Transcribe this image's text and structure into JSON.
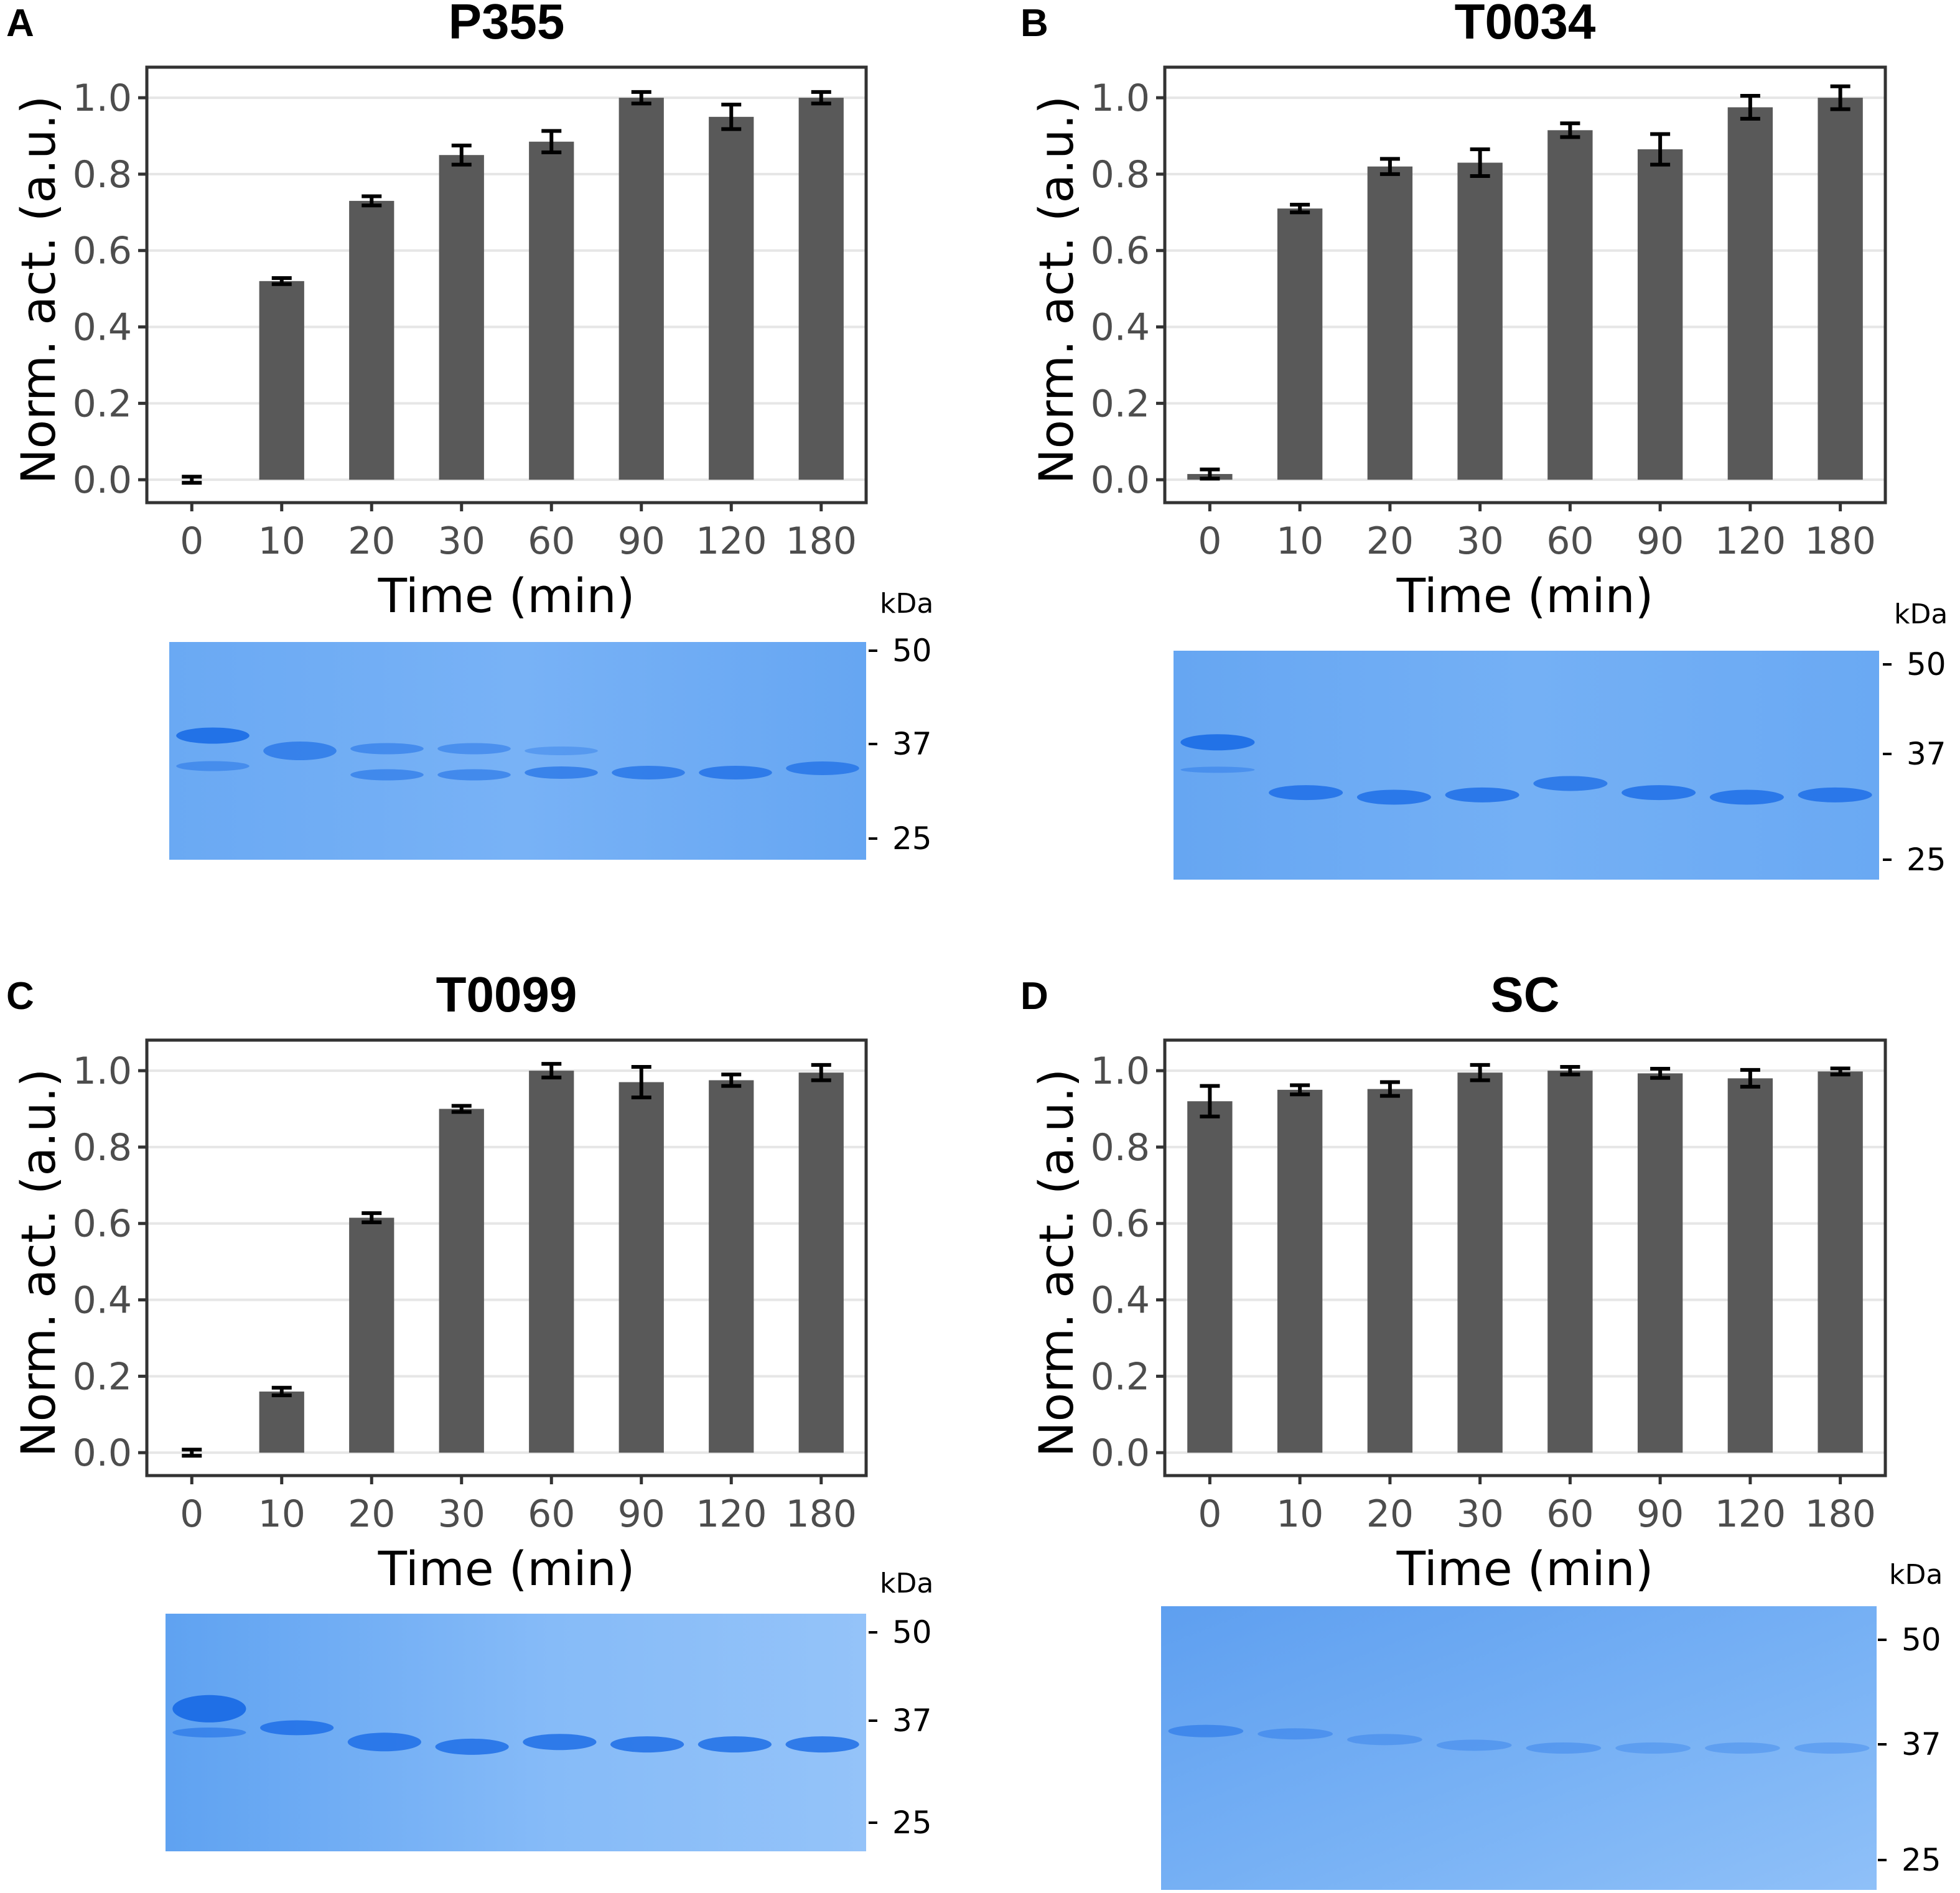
{
  "chart_data": [
    {
      "panel": "A",
      "title": "P355",
      "type": "bar",
      "categories": [
        "0",
        "10",
        "20",
        "30",
        "60",
        "90",
        "120",
        "180"
      ],
      "values": [
        0.0,
        0.52,
        0.73,
        0.85,
        0.885,
        1.0,
        0.95,
        1.0
      ],
      "errors": [
        0.008,
        0.008,
        0.012,
        0.025,
        0.028,
        0.015,
        0.032,
        0.015
      ],
      "xlabel": "Time (min)",
      "ylabel": "Norm. act. (a.u.)",
      "ylim": [
        -0.06,
        1.08
      ],
      "yticks": [
        "0.0",
        "0.2",
        "0.4",
        "0.6",
        "0.8",
        "1.0"
      ],
      "gel": {
        "unit": "kDa",
        "markers": [
          "50",
          "37",
          "25"
        ]
      }
    },
    {
      "panel": "B",
      "title": "T0034",
      "type": "bar",
      "categories": [
        "0",
        "10",
        "20",
        "30",
        "60",
        "90",
        "120",
        "180"
      ],
      "values": [
        0.015,
        0.71,
        0.82,
        0.83,
        0.915,
        0.865,
        0.975,
        1.0
      ],
      "errors": [
        0.012,
        0.01,
        0.02,
        0.035,
        0.018,
        0.04,
        0.03,
        0.03
      ],
      "xlabel": "Time (min)",
      "ylabel": "Norm. act. (a.u.)",
      "ylim": [
        -0.06,
        1.08
      ],
      "yticks": [
        "0.0",
        "0.2",
        "0.4",
        "0.6",
        "0.8",
        "1.0"
      ],
      "gel": {
        "unit": "kDa",
        "markers": [
          "50",
          "37",
          "25"
        ]
      }
    },
    {
      "panel": "C",
      "title": "T0099",
      "type": "bar",
      "categories": [
        "0",
        "10",
        "20",
        "30",
        "60",
        "90",
        "120",
        "180"
      ],
      "values": [
        0.0,
        0.16,
        0.615,
        0.9,
        1.0,
        0.97,
        0.975,
        0.995
      ],
      "errors": [
        0.008,
        0.01,
        0.012,
        0.008,
        0.018,
        0.04,
        0.015,
        0.02
      ],
      "xlabel": "Time (min)",
      "ylabel": "Norm. act. (a.u.)",
      "ylim": [
        -0.06,
        1.08
      ],
      "yticks": [
        "0.0",
        "0.2",
        "0.4",
        "0.6",
        "0.8",
        "1.0"
      ],
      "gel": {
        "unit": "kDa",
        "markers": [
          "50",
          "37",
          "25"
        ]
      }
    },
    {
      "panel": "D",
      "title": "SC",
      "type": "bar",
      "categories": [
        "0",
        "10",
        "20",
        "30",
        "60",
        "90",
        "120",
        "180"
      ],
      "values": [
        0.92,
        0.95,
        0.952,
        0.995,
        1.0,
        0.993,
        0.98,
        0.998
      ],
      "errors": [
        0.04,
        0.012,
        0.018,
        0.02,
        0.01,
        0.012,
        0.022,
        0.008
      ],
      "xlabel": "Time (min)",
      "ylabel": "Norm. act. (a.u.)",
      "ylim": [
        -0.06,
        1.08
      ],
      "yticks": [
        "0.0",
        "0.2",
        "0.4",
        "0.6",
        "0.8",
        "1.0"
      ],
      "gel": {
        "unit": "kDa",
        "markers": [
          "50",
          "37",
          "25"
        ]
      }
    }
  ]
}
